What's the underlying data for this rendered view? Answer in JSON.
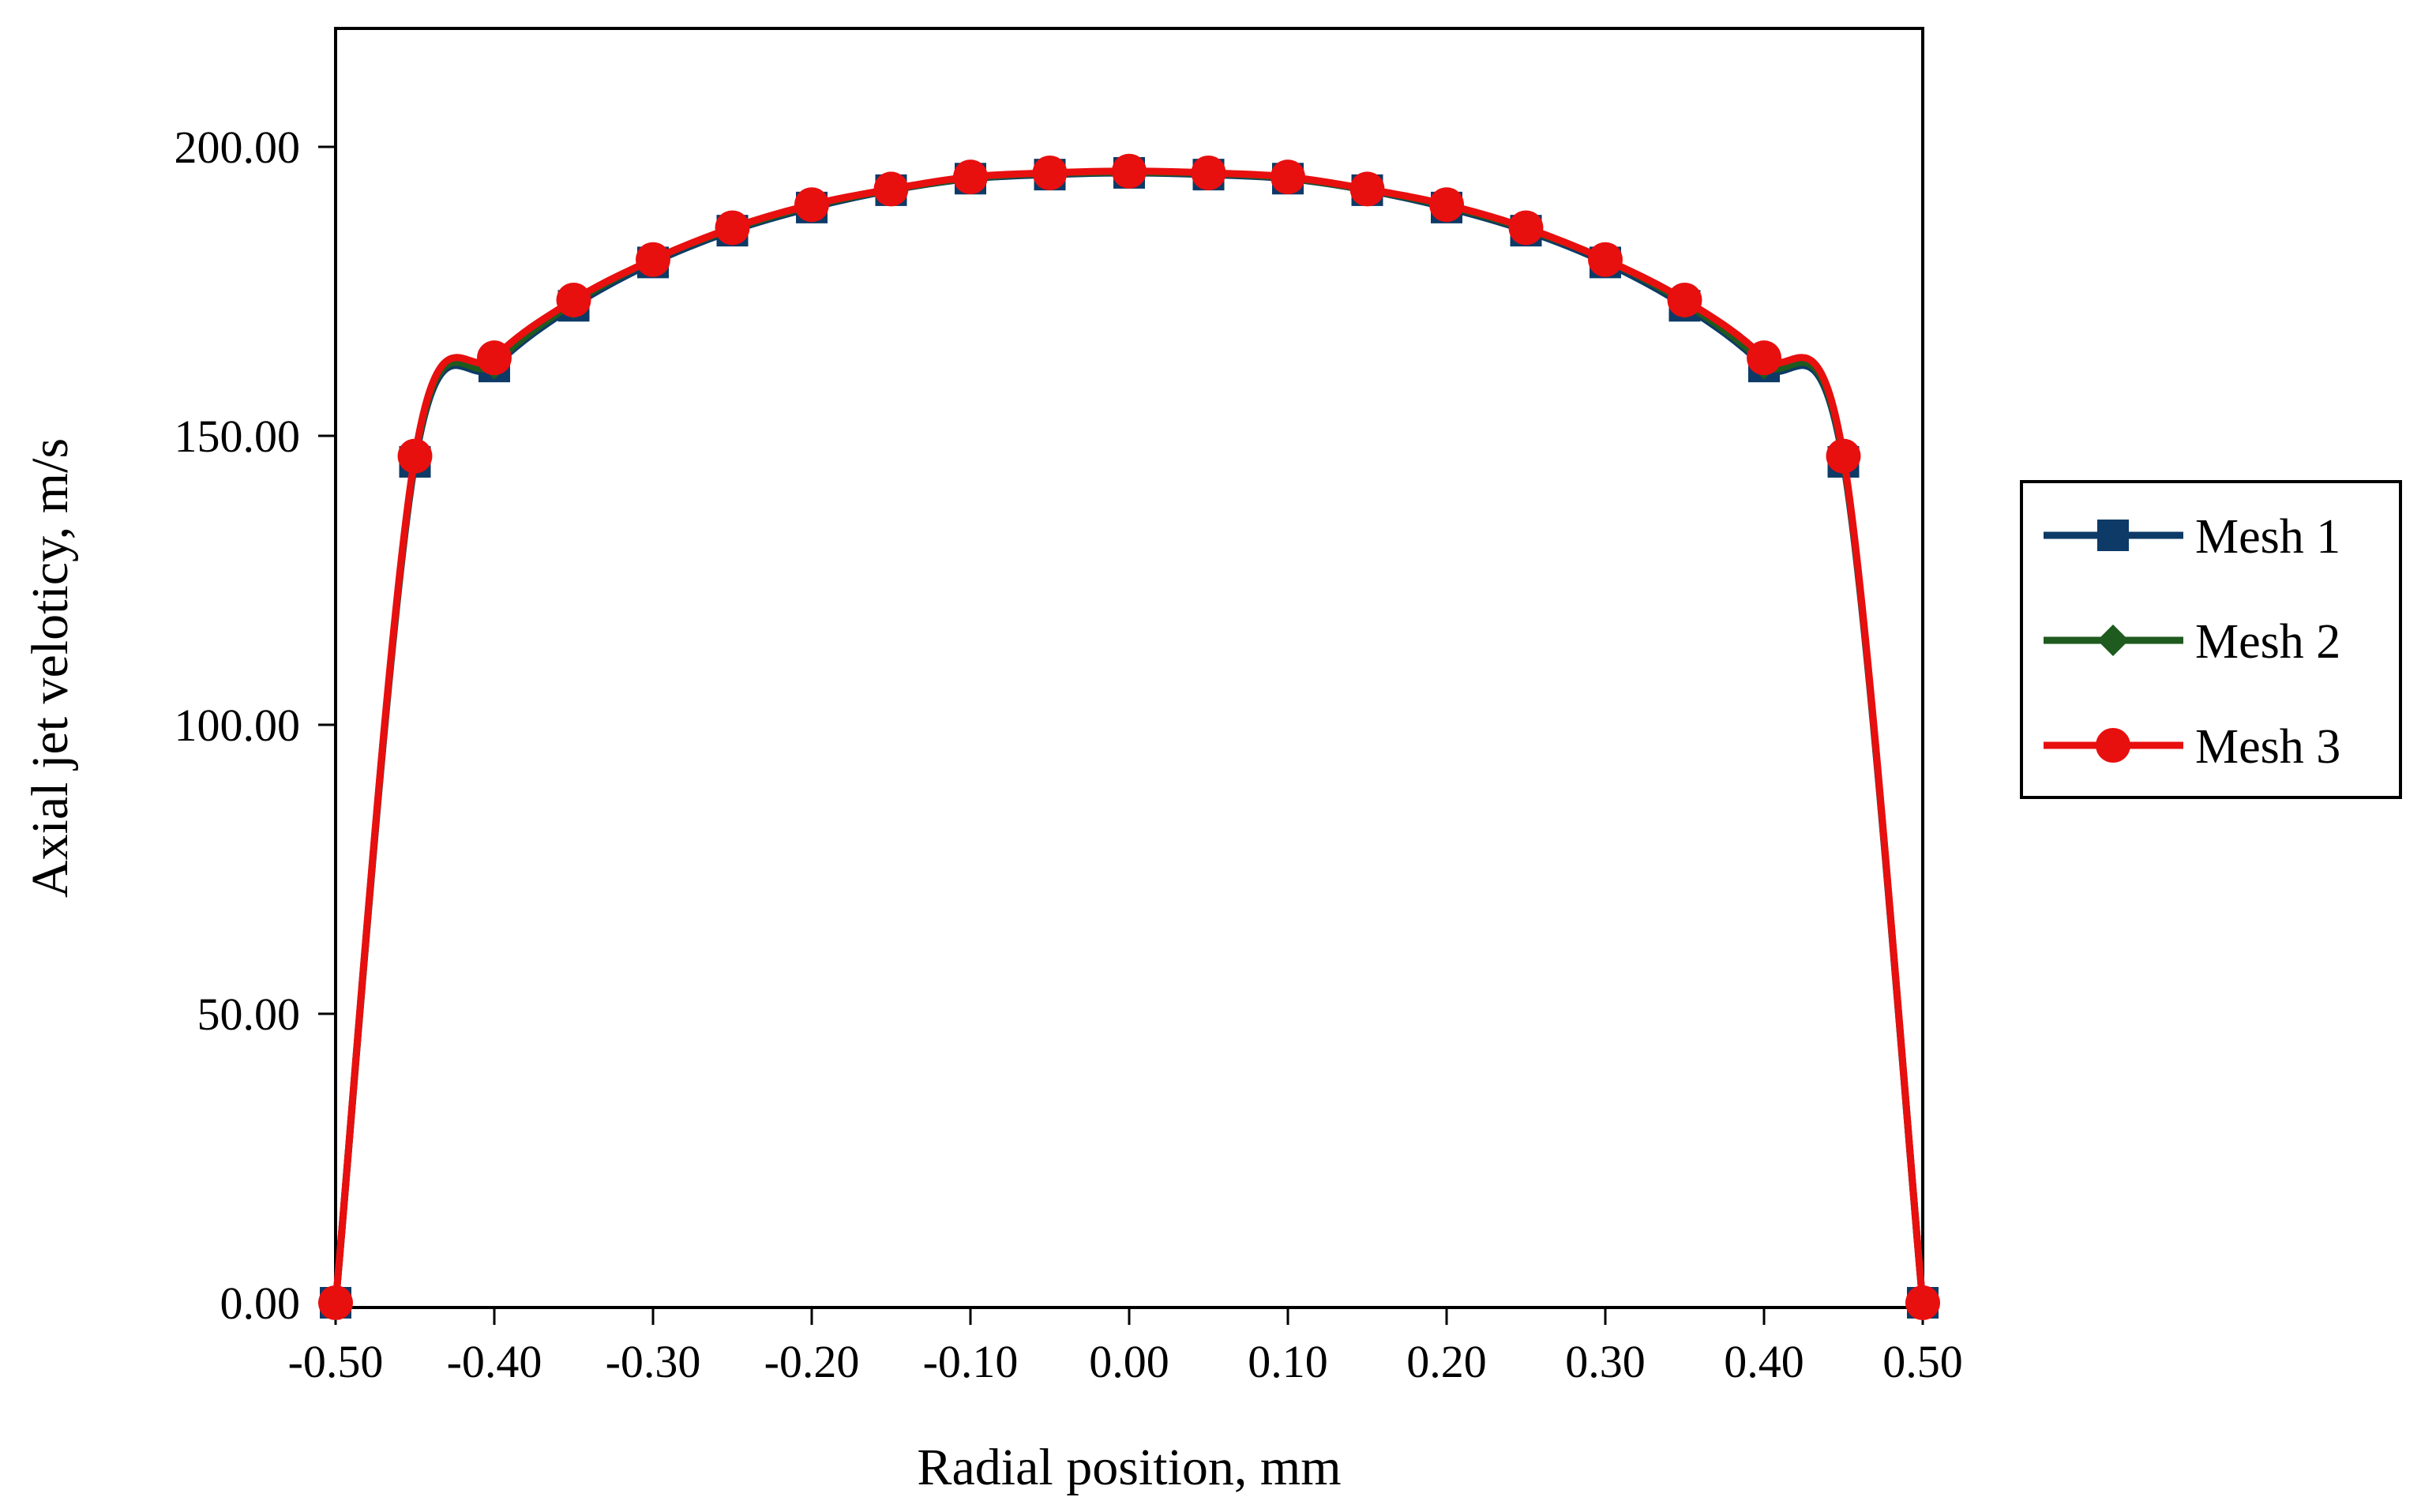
{
  "chart_data": {
    "type": "line",
    "title": "",
    "xlabel": "Radial position, mm",
    "ylabel": "Axial jet veloticy, m/s",
    "xlim": [
      -0.5,
      0.5
    ],
    "ylim": [
      0,
      200
    ],
    "x_ticks": [
      "-0.50",
      "-0.40",
      "-0.30",
      "-0.20",
      "-0.10",
      "0.00",
      "0.10",
      "0.20",
      "0.30",
      "0.40",
      "0.50"
    ],
    "y_ticks": [
      "0.00",
      "50.00",
      "100.00",
      "150.00",
      "200.00"
    ],
    "grid": false,
    "legend_position": "right",
    "x": [
      -0.5,
      -0.45,
      -0.4,
      -0.35,
      -0.3,
      -0.25,
      -0.2,
      -0.15,
      -0.1,
      -0.05,
      0.0,
      0.05,
      0.1,
      0.15,
      0.2,
      0.25,
      0.3,
      0.35,
      0.4,
      0.45,
      0.5
    ],
    "series": [
      {
        "name": "Mesh 1",
        "color": "#0d3a66",
        "marker": "square",
        "values": [
          0,
          145.5,
          162,
          172.5,
          180,
          185.5,
          189.5,
          192.5,
          194.5,
          195.2,
          195.5,
          195.2,
          194.5,
          192.5,
          189.5,
          185.5,
          180,
          172.5,
          162,
          145.5,
          0
        ]
      },
      {
        "name": "Mesh 2",
        "color": "#1f5a1f",
        "marker": "diamond",
        "values": [
          0,
          146,
          162.5,
          173,
          180.5,
          185.8,
          189.8,
          192.6,
          194.6,
          195.4,
          195.6,
          195.4,
          194.6,
          192.6,
          189.8,
          185.8,
          180.5,
          173,
          162.5,
          146,
          0
        ]
      },
      {
        "name": "Mesh 3",
        "color": "#e80f0f",
        "marker": "circle",
        "values": [
          0,
          146.5,
          163.5,
          173.5,
          180.5,
          186,
          190,
          192.7,
          194.8,
          195.5,
          195.8,
          195.5,
          194.8,
          192.7,
          190,
          186,
          180.5,
          173.5,
          163.5,
          146.5,
          0
        ]
      }
    ]
  }
}
